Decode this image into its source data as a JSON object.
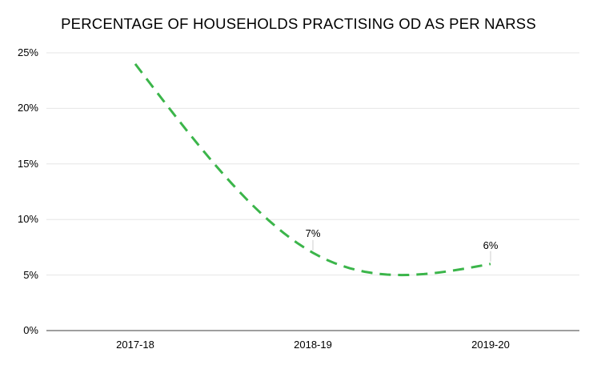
{
  "chart_data": {
    "type": "line",
    "title": "PERCENTAGE OF HOUSEHOLDS PRACTISING OD AS PER NARSS",
    "categories": [
      "2017-18",
      "2018-19",
      "2019-20"
    ],
    "values": [
      24,
      7,
      6
    ],
    "point_labels": [
      "",
      "7%",
      "6%"
    ],
    "y_ticks": [
      "25%",
      "20%",
      "15%",
      "10%",
      "5%",
      "0%"
    ],
    "y_tick_values": [
      25,
      20,
      15,
      10,
      5,
      0
    ],
    "ylim": [
      0,
      25
    ],
    "xlabel": "",
    "ylabel": "",
    "legend": "none",
    "grid": true,
    "line": {
      "color": "#3bb54a",
      "width": 3,
      "dash": "14 9",
      "smooth": true
    },
    "colors": {
      "grid": "#e6e6e6",
      "axis": "#9e9e9e",
      "leader": "#cccccc",
      "text": "#000000",
      "background": "#ffffff"
    }
  }
}
